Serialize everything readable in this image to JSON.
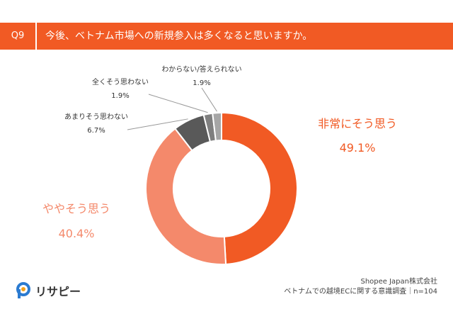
{
  "header": {
    "badge": "Q9",
    "question": "今後、ベトナム市場への新規参入は多くなると思いますか。"
  },
  "chart_data": {
    "type": "pie",
    "style": "donut",
    "categories": [
      "非常にそう思う",
      "ややそう思う",
      "あまりそう思わない",
      "全くそう思わない",
      "わからない/答えられない"
    ],
    "values": [
      49.1,
      40.4,
      6.7,
      1.9,
      1.9
    ],
    "labels": [
      "49.1%",
      "40.4%",
      "6.7%",
      "1.9%",
      "1.9%"
    ],
    "colors": [
      "#f15a24",
      "#f4896b",
      "#595959",
      "#7f7f7f",
      "#a6a6a6"
    ]
  },
  "footer": {
    "company": "Shopee Japan株式会社",
    "survey": "ベトナムでの越境ECに関する意識調査｜n=104"
  },
  "logo": {
    "text": "リサピー"
  }
}
